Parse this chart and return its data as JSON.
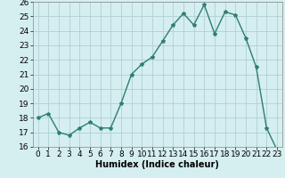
{
  "x": [
    0,
    1,
    2,
    3,
    4,
    5,
    6,
    7,
    8,
    9,
    10,
    11,
    12,
    13,
    14,
    15,
    16,
    17,
    18,
    19,
    20,
    21,
    22,
    23
  ],
  "y": [
    18.0,
    18.3,
    17.0,
    16.8,
    17.3,
    17.7,
    17.3,
    17.3,
    19.0,
    21.0,
    21.7,
    22.2,
    23.3,
    24.4,
    25.2,
    24.4,
    25.8,
    23.8,
    25.3,
    25.1,
    23.5,
    21.5,
    17.3,
    15.8
  ],
  "line_color": "#2d7f6e",
  "marker": "*",
  "marker_size": 3,
  "bg_color": "#d5eef0",
  "grid_color": "#b0d0d4",
  "xlabel": "Humidex (Indice chaleur)",
  "ylim": [
    16,
    26
  ],
  "xlim": [
    -0.5,
    23.5
  ],
  "yticks": [
    16,
    17,
    18,
    19,
    20,
    21,
    22,
    23,
    24,
    25,
    26
  ],
  "xticks": [
    0,
    1,
    2,
    3,
    4,
    5,
    6,
    7,
    8,
    9,
    10,
    11,
    12,
    13,
    14,
    15,
    16,
    17,
    18,
    19,
    20,
    21,
    22,
    23
  ],
  "xlabel_fontsize": 7,
  "tick_fontsize": 6.5,
  "line_width": 1.0
}
